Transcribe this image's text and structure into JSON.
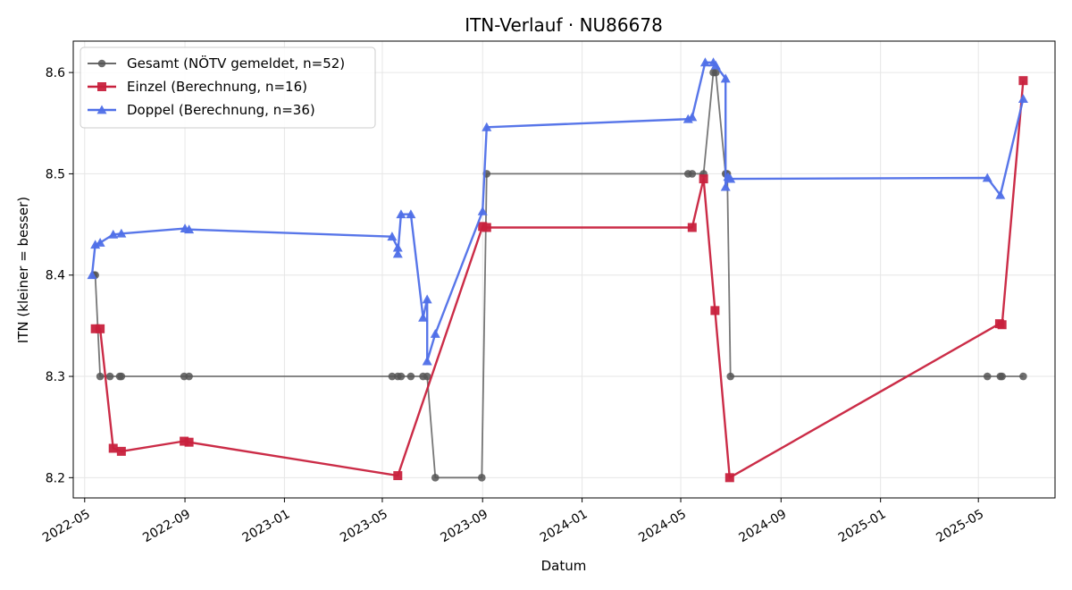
{
  "chart_data": {
    "type": "line",
    "title": "ITN-Verlauf · NU86678",
    "xlabel": "Datum",
    "ylabel": "ITN  (kleiner = besser)",
    "xlim": [
      "2022-04-17",
      "2025-08-03"
    ],
    "ylim": [
      8.18,
      8.631
    ],
    "x_ticks": [
      "2022-05",
      "2022-09",
      "2023-01",
      "2023-05",
      "2023-09",
      "2024-01",
      "2024-05",
      "2024-09",
      "2025-01",
      "2025-05"
    ],
    "y_ticks": [
      8.2,
      8.3,
      8.4,
      8.5,
      8.6
    ],
    "grid": true,
    "legend_position": "top-left",
    "series": [
      {
        "name": "Gesamt (NÖTV gemeldet, n=52)",
        "color": "#555555",
        "marker": "circle",
        "points": [
          [
            "2022-05-12",
            8.4
          ],
          [
            "2022-05-14",
            8.4
          ],
          [
            "2022-05-20",
            8.3
          ],
          [
            "2022-06-01",
            8.3
          ],
          [
            "2022-06-13",
            8.3
          ],
          [
            "2022-06-15",
            8.3
          ],
          [
            "2022-08-31",
            8.3
          ],
          [
            "2022-09-06",
            8.3
          ],
          [
            "2023-05-13",
            8.3
          ],
          [
            "2023-05-20",
            8.3
          ],
          [
            "2023-05-24",
            8.3
          ],
          [
            "2023-06-05",
            8.3
          ],
          [
            "2023-06-20",
            8.3
          ],
          [
            "2023-06-25",
            8.3
          ],
          [
            "2023-07-05",
            8.2
          ],
          [
            "2023-08-31",
            8.2
          ],
          [
            "2023-09-06",
            8.5
          ],
          [
            "2024-05-10",
            8.5
          ],
          [
            "2024-05-15",
            8.5
          ],
          [
            "2024-05-29",
            8.5
          ],
          [
            "2024-06-10",
            8.6
          ],
          [
            "2024-06-13",
            8.6
          ],
          [
            "2024-06-25",
            8.5
          ],
          [
            "2024-06-27",
            8.5
          ],
          [
            "2024-07-01",
            8.3
          ],
          [
            "2025-05-12",
            8.3
          ],
          [
            "2025-05-28",
            8.3
          ],
          [
            "2025-05-30",
            8.3
          ],
          [
            "2025-06-25",
            8.3
          ]
        ]
      },
      {
        "name": "Einzel (Berechnung, n=16)",
        "color": "#c8213d",
        "marker": "square",
        "points": [
          [
            "2022-05-14",
            8.347
          ],
          [
            "2022-05-20",
            8.347
          ],
          [
            "2022-06-05",
            8.229
          ],
          [
            "2022-06-15",
            8.226
          ],
          [
            "2022-08-31",
            8.236
          ],
          [
            "2022-09-06",
            8.235
          ],
          [
            "2023-05-20",
            8.202
          ],
          [
            "2023-09-01",
            8.448
          ],
          [
            "2023-09-06",
            8.447
          ],
          [
            "2024-05-15",
            8.447
          ],
          [
            "2024-05-29",
            8.495
          ],
          [
            "2024-06-12",
            8.365
          ],
          [
            "2024-06-30",
            8.2
          ],
          [
            "2025-05-27",
            8.352
          ],
          [
            "2025-05-30",
            8.351
          ],
          [
            "2025-06-25",
            8.592
          ]
        ]
      },
      {
        "name": "Doppel (Berechnung, n=36)",
        "color": "#4f6fe8",
        "marker": "triangle",
        "points": [
          [
            "2022-05-10",
            8.4
          ],
          [
            "2022-05-14",
            8.43
          ],
          [
            "2022-05-20",
            8.432
          ],
          [
            "2022-06-05",
            8.44
          ],
          [
            "2022-06-15",
            8.441
          ],
          [
            "2022-09-01",
            8.446
          ],
          [
            "2022-09-06",
            8.445
          ],
          [
            "2023-05-13",
            8.438
          ],
          [
            "2023-05-20",
            8.427
          ],
          [
            "2023-05-20",
            8.421
          ],
          [
            "2023-05-24",
            8.46
          ],
          [
            "2023-06-05",
            8.46
          ],
          [
            "2023-06-20",
            8.358
          ],
          [
            "2023-06-25",
            8.376
          ],
          [
            "2023-06-25",
            8.315
          ],
          [
            "2023-07-05",
            8.342
          ],
          [
            "2023-09-01",
            8.463
          ],
          [
            "2023-09-06",
            8.546
          ],
          [
            "2024-05-10",
            8.554
          ],
          [
            "2024-05-15",
            8.556
          ],
          [
            "2024-05-31",
            8.61
          ],
          [
            "2024-06-10",
            8.61
          ],
          [
            "2024-06-13",
            8.607
          ],
          [
            "2024-06-25",
            8.594
          ],
          [
            "2024-06-25",
            8.487
          ],
          [
            "2024-06-28",
            8.497
          ],
          [
            "2024-07-01",
            8.495
          ],
          [
            "2025-05-12",
            8.496
          ],
          [
            "2025-05-28",
            8.479
          ],
          [
            "2025-06-25",
            8.574
          ]
        ]
      }
    ]
  }
}
